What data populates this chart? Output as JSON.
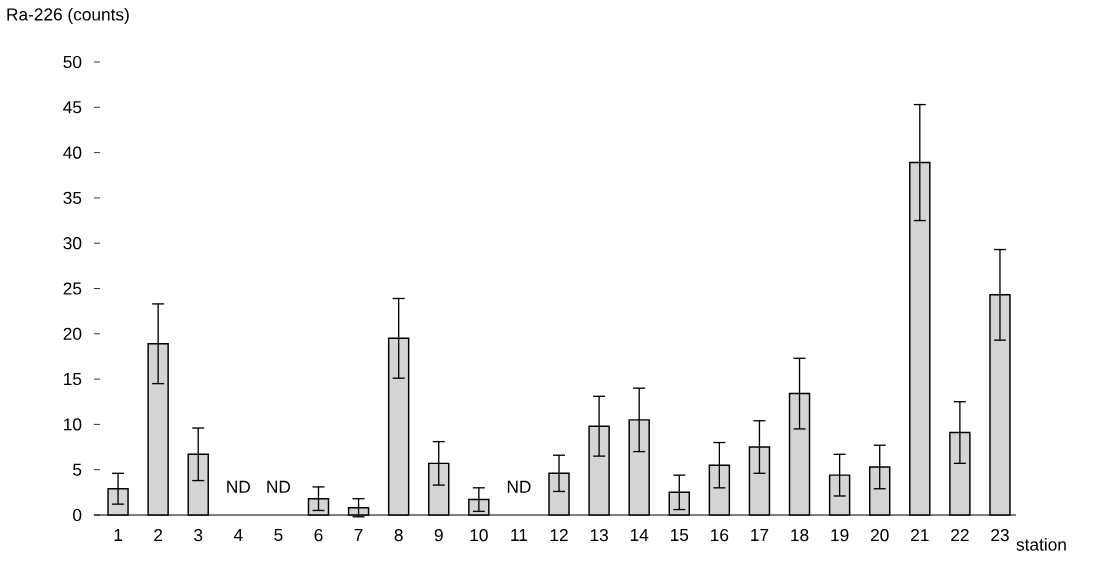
{
  "chart_data": {
    "type": "bar",
    "ylabel": "Ra-226 (counts)",
    "xlabel": "station",
    "categories": [
      "1",
      "2",
      "3",
      "4",
      "5",
      "6",
      "7",
      "8",
      "9",
      "10",
      "11",
      "12",
      "13",
      "14",
      "15",
      "16",
      "17",
      "18",
      "19",
      "20",
      "21",
      "22",
      "23"
    ],
    "values": [
      2.9,
      18.9,
      6.7,
      null,
      null,
      1.8,
      0.8,
      19.5,
      5.7,
      1.7,
      null,
      4.6,
      9.8,
      10.5,
      2.5,
      5.5,
      7.5,
      13.4,
      4.4,
      5.3,
      38.9,
      9.1,
      24.3
    ],
    "errors": [
      1.7,
      4.4,
      2.9,
      null,
      null,
      1.3,
      1.0,
      4.4,
      2.4,
      1.3,
      null,
      2.0,
      3.3,
      3.5,
      1.9,
      2.5,
      2.9,
      3.9,
      2.3,
      2.4,
      6.4,
      3.4,
      5.0
    ],
    "color": "#d4d4d4",
    "ylim": [
      0,
      50
    ],
    "yticks": [
      0,
      5,
      10,
      15,
      20,
      25,
      30,
      35,
      40,
      45,
      50
    ],
    "annotations": [
      "ND",
      "ND",
      "ND"
    ]
  }
}
